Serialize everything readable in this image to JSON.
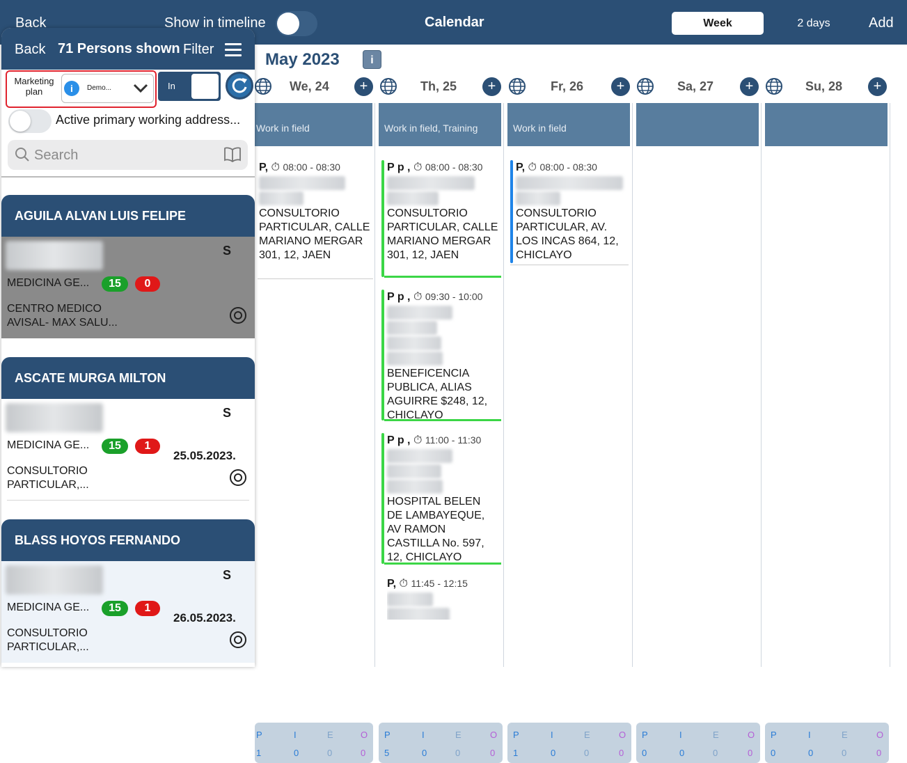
{
  "topbar": {
    "back": "Back",
    "show_in_timeline": "Show in timeline",
    "title": "Calendar",
    "view_week": "Week",
    "view_2days": "2 days",
    "add": "Add"
  },
  "calendar": {
    "month": "May 2023",
    "info": "i",
    "days": [
      {
        "label": "We, 24",
        "band": "Work in field",
        "footer_letters": [
          "P",
          "I",
          "E",
          "O"
        ],
        "footer_values": [
          "1",
          "0",
          "0",
          "0"
        ]
      },
      {
        "label": "Th, 25",
        "band": "Work in field, Training",
        "footer_letters": [
          "P",
          "I",
          "E",
          "O"
        ],
        "footer_values": [
          "5",
          "0",
          "0",
          "0"
        ]
      },
      {
        "label": "Fr, 26",
        "band": "Work in field",
        "footer_letters": [
          "P",
          "I",
          "E",
          "O"
        ],
        "footer_values": [
          "1",
          "0",
          "0",
          "0"
        ]
      },
      {
        "label": "Sa, 27",
        "band": "",
        "footer_letters": [
          "P",
          "I",
          "E",
          "O"
        ],
        "footer_values": [
          "0",
          "0",
          "0",
          "0"
        ]
      },
      {
        "label": "Su, 28",
        "band": "",
        "footer_letters": [
          "P",
          "I",
          "E",
          "O"
        ],
        "footer_values": [
          "0",
          "0",
          "0",
          "0"
        ]
      }
    ],
    "events": {
      "we24_1": {
        "prefix": "P,",
        "time": "08:00 - 08:30",
        "location": "CONSULTORIO PARTICULAR, CALLE MARIANO MERGAR 301, 12, JAEN"
      },
      "th25_1": {
        "prefix": "P p ,",
        "time": "08:00 - 08:30",
        "location": "CONSULTORIO PARTICULAR, CALLE MARIANO MERGAR 301, 12, JAEN"
      },
      "th25_2": {
        "prefix": "P p ,",
        "time": "09:30 - 10:00",
        "location": "BENEFICENCIA PUBLICA, ALIAS AGUIRRE $248, 12, CHICLAYO"
      },
      "th25_3": {
        "prefix": "P p ,",
        "time": "11:00 - 11:30",
        "location": "HOSPITAL BELEN DE LAMBAYEQUE, AV RAMON CASTILLA No. 597, 12, CHICLAYO"
      },
      "th25_4": {
        "prefix": "P,",
        "time": "11:45 - 12:15"
      },
      "fr26_1": {
        "prefix": "P,",
        "time": "08:00 - 08:30",
        "location": "CONSULTORIO PARTICULAR, AV. LOS INCAS 864, 12, CHICLAYO"
      }
    },
    "colors": {
      "green": "#3bd646",
      "blue": "#1f84e8"
    }
  },
  "panel": {
    "back": "Back",
    "title": "71 Persons shown",
    "filter": "Filter",
    "marketing_plan_label": "Marketing plan",
    "marketing_plan_value": "Demo...",
    "in_label": "In",
    "active_primary": "Active primary working address...",
    "search_placeholder": "Search",
    "groups": [
      {
        "name": "AGUILA ALVAN LUIS FELIPE",
        "s": "S",
        "specialty": "MEDICINA GE...",
        "green": "15",
        "red": "0",
        "date": "",
        "address": "CENTRO MEDICO AVISAL- MAX SALU..."
      },
      {
        "name": "ASCATE MURGA MILTON",
        "s": "S",
        "specialty": "MEDICINA GE...",
        "green": "15",
        "red": "1",
        "date": "25.05.2023.",
        "address": "CONSULTORIO PARTICULAR,..."
      },
      {
        "name": "BLASS HOYOS FERNANDO",
        "s": "S",
        "specialty": "MEDICINA GE...",
        "green": "15",
        "red": "1",
        "date": "26.05.2023.",
        "address": "CONSULTORIO PARTICULAR,..."
      }
    ]
  }
}
